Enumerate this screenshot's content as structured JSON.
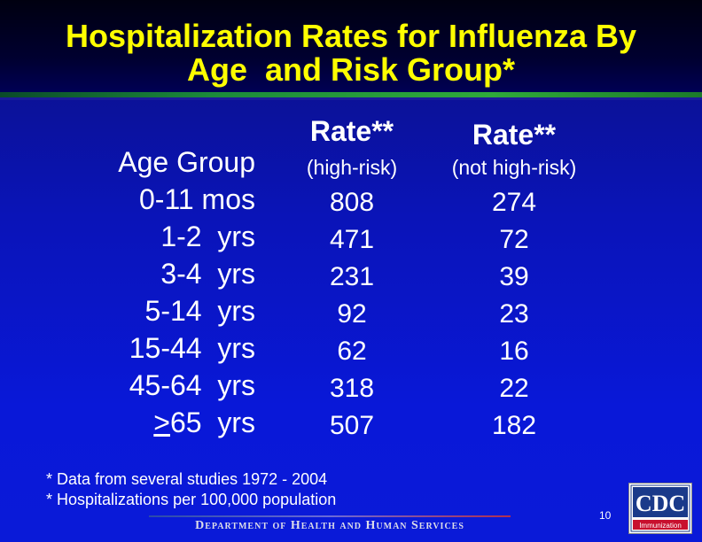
{
  "title": {
    "line1": "Hospitalization Rates for Influenza By",
    "line2": "Age  and Risk Group*"
  },
  "table": {
    "age_header": "Age Group",
    "rate_header_high": "Rate**",
    "rate_header_not": "Rate**",
    "high_risk_label": "(high-risk)",
    "not_high_risk_label": "(not high-risk)",
    "rows": [
      {
        "age": "0-11 mos",
        "high": "808",
        "not": "274"
      },
      {
        "age": "1-2  yrs",
        "high": "471",
        "not": "72"
      },
      {
        "age": "3-4  yrs",
        "high": "231",
        "not": "39"
      },
      {
        "age": "5-14  yrs",
        "high": "92",
        "not": "23"
      },
      {
        "age": "15-44  yrs",
        "high": "62",
        "not": "16"
      },
      {
        "age": "45-64  yrs",
        "high": "318",
        "not": "22"
      },
      {
        "age_ge": ">",
        "age_rest": "65  yrs",
        "high": "507",
        "not": "182"
      }
    ]
  },
  "notes": {
    "note1": "* Data from several studies 1972 - 2004",
    "note2": "* Hospitalizations per 100,000 population"
  },
  "footer": {
    "department": "Department of Health and Human Services",
    "page_number": "10",
    "logo_text": "CDC",
    "logo_subtext": "Immunization"
  },
  "colors": {
    "title": "#ffff00",
    "background": "#0a14b8",
    "text": "#ffffff",
    "rule": "#2faa3a"
  }
}
